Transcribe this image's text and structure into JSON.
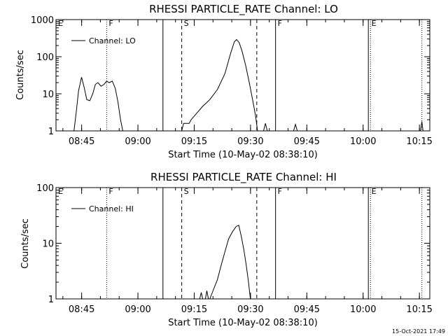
{
  "footer_timestamp": "15-Oct-2021 17:49",
  "x_ticks": [
    "08:45",
    "09:00",
    "09:15",
    "09:30",
    "09:45",
    "10:00",
    "10:15"
  ],
  "x_tick_minutes": [
    6.833,
    21.833,
    36.833,
    51.833,
    66.833,
    81.833,
    96.833
  ],
  "event_markers": [
    {
      "label": "E",
      "minute": 0,
      "style": "none"
    },
    {
      "label": "F",
      "minute": 13.5,
      "style": "dotted"
    },
    {
      "label": "",
      "minute": 28.5,
      "style": "solid"
    },
    {
      "label": "S",
      "minute": 33.5,
      "style": "dashed"
    },
    {
      "label": "",
      "minute": 53.5,
      "style": "dashed"
    },
    {
      "label": "F",
      "minute": 58.5,
      "style": "solid"
    },
    {
      "label": "E",
      "minute": 83.5,
      "style": "solid-dotted"
    },
    {
      "label": "",
      "minute": 97.5,
      "style": "dotted"
    }
  ],
  "chart_data": [
    {
      "type": "line",
      "title": "RHESSI PARTICLE_RATE Channel: LO",
      "xlabel": "Start Time (10-May-02 08:38:10)",
      "ylabel": "Counts/sec",
      "y_scale": "log",
      "ylim": [
        1,
        1000
      ],
      "y_ticks": [
        "1",
        "10",
        "100",
        "1000"
      ],
      "y_tick_values": [
        1,
        10,
        100,
        1000
      ],
      "xlim_minutes": [
        0,
        99.6
      ],
      "legend": "Channel: LO",
      "legend_position": "top-left",
      "series": [
        {
          "name": "Channel: LO",
          "segments": [
            [
              [
                4.8,
                1
              ],
              [
                5.5,
                4
              ],
              [
                6,
                12
              ],
              [
                6.8,
                28
              ],
              [
                7.5,
                15
              ],
              [
                8.2,
                7
              ],
              [
                9,
                6.5
              ],
              [
                9.8,
                10
              ],
              [
                10.5,
                18
              ],
              [
                11.2,
                20
              ],
              [
                12,
                16
              ],
              [
                12.8,
                18
              ],
              [
                13.5,
                22
              ],
              [
                14.2,
                20
              ],
              [
                15,
                22
              ],
              [
                15.8,
                14
              ],
              [
                16.5,
                6
              ],
              [
                17.2,
                2
              ],
              [
                17.8,
                1
              ]
            ],
            [
              [
                33.5,
                1
              ],
              [
                34,
                1.6
              ],
              [
                35.5,
                1.6
              ],
              [
                36,
                2
              ],
              [
                37.5,
                3
              ],
              [
                39,
                4.5
              ],
              [
                41,
                7
              ],
              [
                43,
                13
              ],
              [
                45,
                35
              ],
              [
                46.5,
                120
              ],
              [
                47.5,
                250
              ],
              [
                48.1,
                290
              ],
              [
                48.8,
                240
              ],
              [
                49.5,
                150
              ],
              [
                50.5,
                60
              ],
              [
                51.5,
                20
              ],
              [
                52.5,
                6
              ],
              [
                53.2,
                2.5
              ],
              [
                53.7,
                1
              ]
            ],
            [
              [
                55.3,
                1
              ],
              [
                55.8,
                1.6
              ],
              [
                56.3,
                1
              ]
            ],
            [
              [
                63.3,
                1
              ],
              [
                63.8,
                1.5
              ],
              [
                64.3,
                1
              ]
            ],
            [
              [
                97.1,
                1
              ],
              [
                97.5,
                1.8
              ],
              [
                97.8,
                1
              ]
            ]
          ]
        }
      ]
    },
    {
      "type": "line",
      "title": "RHESSI PARTICLE_RATE Channel: HI",
      "xlabel": "Start Time (10-May-02 08:38:10)",
      "ylabel": "Counts/sec",
      "y_scale": "log",
      "ylim": [
        1,
        100
      ],
      "y_ticks": [
        "1",
        "10",
        "100"
      ],
      "y_tick_values": [
        1,
        10,
        100
      ],
      "xlim_minutes": [
        0,
        99.6
      ],
      "legend": "Channel: HI",
      "legend_position": "top-left",
      "series": [
        {
          "name": "Channel: HI",
          "segments": [
            [
              [
                38.3,
                1
              ],
              [
                38.7,
                1.3
              ],
              [
                39.1,
                1
              ]
            ],
            [
              [
                39.8,
                1
              ],
              [
                40.2,
                1.4
              ],
              [
                40.6,
                1
              ]
            ],
            [
              [
                41,
                1
              ],
              [
                42,
                1.5
              ],
              [
                43,
                2.2
              ],
              [
                44,
                4
              ],
              [
                45,
                7
              ],
              [
                46,
                12
              ],
              [
                47,
                16
              ],
              [
                48,
                20
              ],
              [
                48.7,
                21
              ],
              [
                49.3,
                14
              ],
              [
                50,
                8
              ],
              [
                50.7,
                4
              ],
              [
                51.3,
                2
              ],
              [
                51.8,
                1
              ]
            ]
          ]
        }
      ]
    }
  ]
}
